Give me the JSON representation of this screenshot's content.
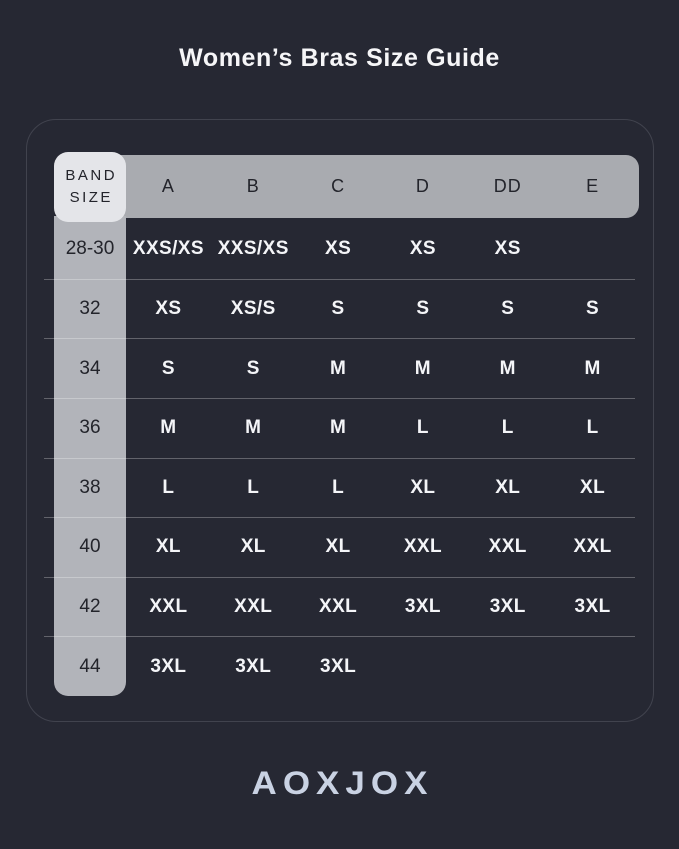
{
  "header": {
    "title": "Women’s Bras Size Guide"
  },
  "table": {
    "band_header_line1": "BAND",
    "band_header_line2": "SIZE",
    "cup_columns": [
      "A",
      "B",
      "C",
      "D",
      "DD",
      "E"
    ],
    "rows": [
      {
        "band": "28-30",
        "values": [
          "XXS/XS",
          "XXS/XS",
          "XS",
          "XS",
          "XS",
          ""
        ]
      },
      {
        "band": "32",
        "values": [
          "XS",
          "XS/S",
          "S",
          "S",
          "S",
          "S"
        ]
      },
      {
        "band": "34",
        "values": [
          "S",
          "S",
          "M",
          "M",
          "M",
          "M"
        ]
      },
      {
        "band": "36",
        "values": [
          "M",
          "M",
          "M",
          "L",
          "L",
          "L"
        ]
      },
      {
        "band": "38",
        "values": [
          "L",
          "L",
          "L",
          "XL",
          "XL",
          "XL"
        ]
      },
      {
        "band": "40",
        "values": [
          "XL",
          "XL",
          "XL",
          "XXL",
          "XXL",
          "XXL"
        ]
      },
      {
        "band": "42",
        "values": [
          "XXL",
          "XXL",
          "XXL",
          "3XL",
          "3XL",
          "3XL"
        ]
      },
      {
        "band": "44",
        "values": [
          "3XL",
          "3XL",
          "3XL",
          "",
          "",
          ""
        ]
      }
    ]
  },
  "footer": {
    "brand": "AOXJOX"
  },
  "colors": {
    "background": "#262833",
    "panel_border": "#41434e",
    "header_bar": "#a9abb0",
    "band_cell": "#e4e5e9",
    "band_strip": "#b2b4ba",
    "dark_text": "#23242b",
    "value_text": "#f4f5f8",
    "title_text": "#f6f6f8",
    "brand_color": "#c9d2e3",
    "separator": "rgba(255,255,255,0.28)"
  }
}
